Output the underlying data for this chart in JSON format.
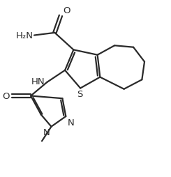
{
  "background_color": "#ffffff",
  "line_color": "#2a2a2a",
  "line_width": 1.6,
  "font_size": 9.5,
  "figsize": [
    2.45,
    2.55
  ],
  "dpi": 100,
  "xlim": [
    0,
    10
  ],
  "ylim": [
    0,
    10.4
  ]
}
